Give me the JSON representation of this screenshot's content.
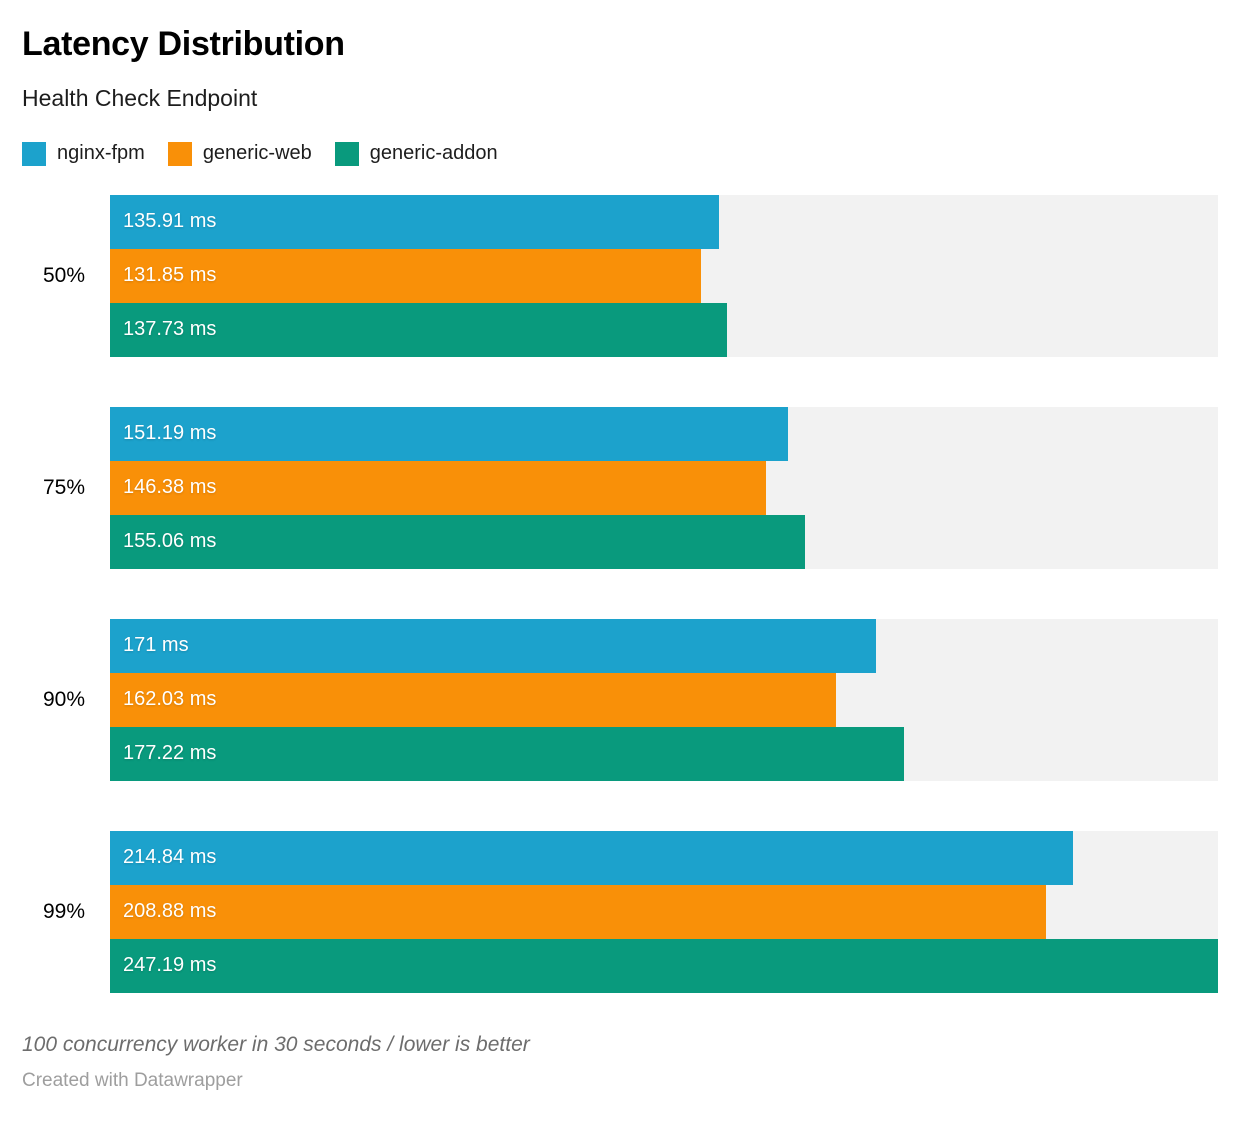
{
  "title": "Latency Distribution",
  "subtitle": "Health Check Endpoint",
  "legend": {
    "items": [
      {
        "label": "nginx-fpm",
        "color": "#1CA2CC"
      },
      {
        "label": "generic-web",
        "color": "#F99008"
      },
      {
        "label": "generic-addon",
        "color": "#099A7D"
      }
    ]
  },
  "chart_data": {
    "type": "bar",
    "orientation": "horizontal",
    "title": "Latency Distribution",
    "subtitle": "Health Check Endpoint",
    "unit": "ms",
    "categories": [
      "50%",
      "75%",
      "90%",
      "99%"
    ],
    "series": [
      {
        "name": "nginx-fpm",
        "color": "#1CA2CC",
        "values": [
          135.91,
          151.19,
          171,
          214.84
        ],
        "labels": [
          "135.91 ms",
          "151.19 ms",
          "171 ms",
          "214.84 ms"
        ]
      },
      {
        "name": "generic-web",
        "color": "#F99008",
        "values": [
          131.85,
          146.38,
          162.03,
          208.88
        ],
        "labels": [
          "131.85 ms",
          "146.38 ms",
          "162.03 ms",
          "208.88 ms"
        ]
      },
      {
        "name": "generic-addon",
        "color": "#099A7D",
        "values": [
          137.73,
          155.06,
          177.22,
          247.19
        ],
        "labels": [
          "137.73 ms",
          "155.06 ms",
          "177.22 ms",
          "247.19 ms"
        ]
      }
    ],
    "xlim": [
      0,
      247.19
    ],
    "track_color": "#F2F2F2",
    "grid": false,
    "legend_position": "top",
    "value_labels_inside": true
  },
  "footer": {
    "note": "100 concurrency worker in 30 seconds / lower is better",
    "attribution": "Created with Datawrapper"
  }
}
